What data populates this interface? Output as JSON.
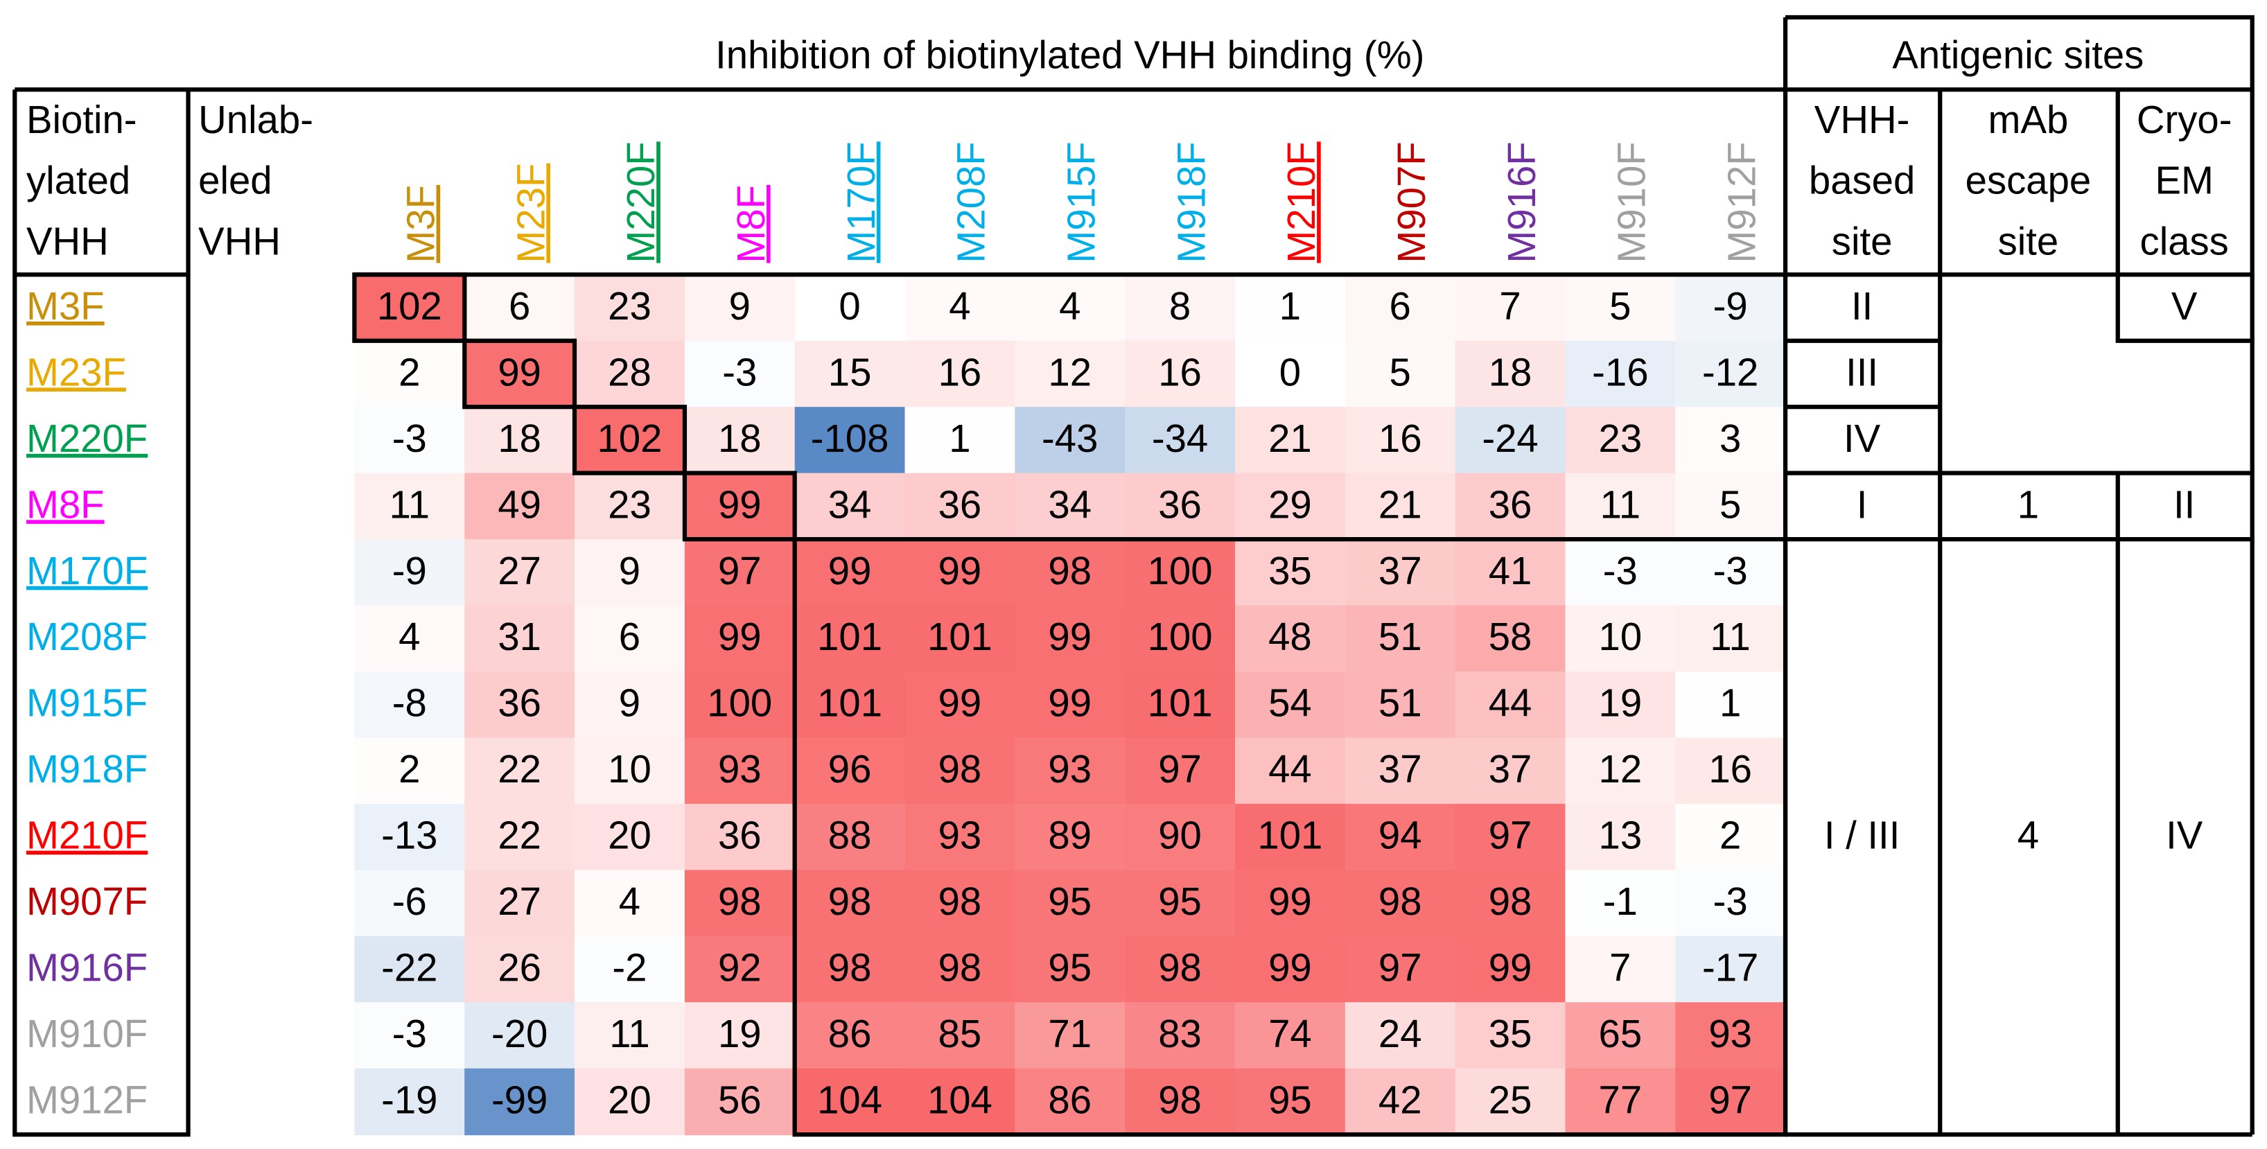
{
  "header": {
    "title": "Inhibition of biotinylated VHH binding (%)",
    "sites_title": "Antigenic sites",
    "row_head": [
      "Biotin-",
      "ylated",
      "VHH"
    ],
    "col_head": [
      "Unlab-",
      "eled",
      "VHH"
    ],
    "vhh_head": [
      "VHH-",
      "based",
      "site"
    ],
    "mab_head": [
      "mAb",
      "escape",
      "site"
    ],
    "cryo_head": [
      "Cryo-",
      "EM",
      "class"
    ]
  },
  "table": {
    "labels": [
      {
        "label": "M3F",
        "color": "#c8900a",
        "underline": true
      },
      {
        "label": "M23F",
        "color": "#e8aa00",
        "underline": true
      },
      {
        "label": "M220F",
        "color": "#00a050",
        "underline": true
      },
      {
        "label": "M8F",
        "color": "#ff00ff",
        "underline": true
      },
      {
        "label": "M170F",
        "color": "#00aee8",
        "underline": true
      },
      {
        "label": "M208F",
        "color": "#00aee8",
        "underline": false
      },
      {
        "label": "M915F",
        "color": "#00aee8",
        "underline": false
      },
      {
        "label": "M918F",
        "color": "#00aee8",
        "underline": false
      },
      {
        "label": "M210F",
        "color": "#ff0000",
        "underline": true
      },
      {
        "label": "M907F",
        "color": "#c00000",
        "underline": false
      },
      {
        "label": "M916F",
        "color": "#7030a0",
        "underline": false
      },
      {
        "label": "M910F",
        "color": "#a0a0a0",
        "underline": false
      },
      {
        "label": "M912F",
        "color": "#a0a0a0",
        "underline": false
      }
    ],
    "values": [
      [
        102,
        6,
        23,
        9,
        0,
        4,
        4,
        8,
        1,
        6,
        7,
        5,
        -9
      ],
      [
        2,
        99,
        28,
        -3,
        15,
        16,
        12,
        16,
        0,
        5,
        18,
        -16,
        -12
      ],
      [
        -3,
        18,
        102,
        18,
        -108,
        1,
        -43,
        -34,
        21,
        16,
        -24,
        23,
        3
      ],
      [
        11,
        49,
        23,
        99,
        34,
        36,
        34,
        36,
        29,
        21,
        36,
        11,
        5
      ],
      [
        -9,
        27,
        9,
        97,
        99,
        99,
        98,
        100,
        35,
        37,
        41,
        -3,
        -3
      ],
      [
        4,
        31,
        6,
        99,
        101,
        101,
        99,
        100,
        48,
        51,
        58,
        10,
        11
      ],
      [
        -8,
        36,
        9,
        100,
        101,
        99,
        99,
        101,
        54,
        51,
        44,
        19,
        1
      ],
      [
        2,
        22,
        10,
        93,
        96,
        98,
        93,
        97,
        44,
        37,
        37,
        12,
        16
      ],
      [
        -13,
        22,
        20,
        36,
        88,
        93,
        89,
        90,
        101,
        94,
        97,
        13,
        2
      ],
      [
        -6,
        27,
        4,
        98,
        98,
        98,
        95,
        95,
        99,
        98,
        98,
        -1,
        -3
      ],
      [
        -22,
        26,
        -2,
        92,
        98,
        98,
        95,
        98,
        99,
        97,
        99,
        7,
        -17
      ],
      [
        -3,
        -20,
        11,
        19,
        86,
        85,
        71,
        83,
        74,
        24,
        35,
        65,
        93
      ],
      [
        -19,
        -99,
        20,
        56,
        104,
        104,
        86,
        98,
        95,
        42,
        25,
        77,
        97
      ]
    ],
    "pos_color": "#f8696b",
    "neg_color": "#5a8ac6"
  },
  "sites": {
    "vhh": [
      "II",
      "III",
      "IV",
      "I",
      "I / III"
    ],
    "mab": [
      "1",
      "4"
    ],
    "cryo": [
      "V",
      "II",
      "IV"
    ]
  }
}
